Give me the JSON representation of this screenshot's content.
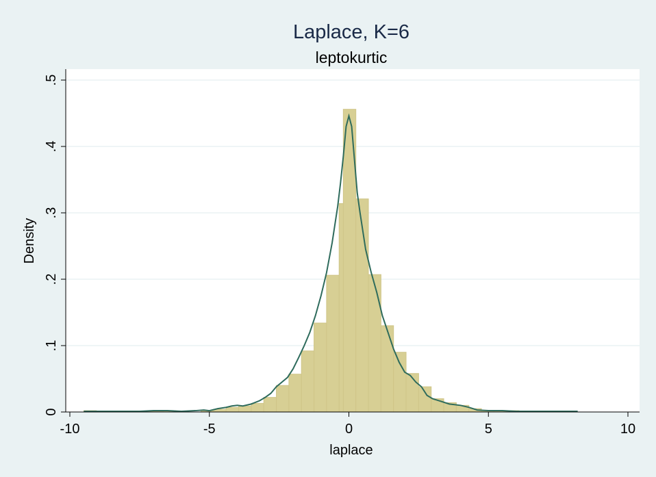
{
  "chart_data": {
    "type": "bar",
    "title": "Laplace, K=6",
    "subtitle": "leptokurtic",
    "xlabel": "laplace",
    "ylabel": "Density",
    "xlim": [
      -10,
      10
    ],
    "ylim": [
      0,
      0.5
    ],
    "x_ticks": [
      -10,
      -5,
      0,
      5,
      10
    ],
    "x_tick_labels": [
      "-10",
      "-5",
      "0",
      "5",
      "10"
    ],
    "y_ticks": [
      0,
      0.1,
      0.2,
      0.3,
      0.4,
      0.5
    ],
    "y_tick_labels": [
      "0",
      ".1",
      ".2",
      ".3",
      ".4",
      ".5"
    ],
    "grid": true,
    "colors": {
      "bars": "#d7cf94",
      "bar_outline": "#cfc588",
      "density_line": "#2e6b5c",
      "background": "#eaf2f3",
      "plot_background": "#ffffff",
      "grid": "#eaf2f3"
    },
    "series": [
      {
        "kind": "histogram",
        "bin_width": 0.45,
        "bins": [
          {
            "x0": -9.5,
            "density": 0.002
          },
          {
            "x0": -8.0,
            "density": 0.001
          },
          {
            "x0": -7.55,
            "density": 0.001
          },
          {
            "x0": -7.1,
            "density": 0.001
          },
          {
            "x0": -6.65,
            "density": 0.002
          },
          {
            "x0": -5.3,
            "density": 0.002
          },
          {
            "x0": -4.85,
            "density": 0.004
          },
          {
            "x0": -4.4,
            "density": 0.007
          },
          {
            "x0": -3.95,
            "density": 0.009
          },
          {
            "x0": -3.5,
            "density": 0.013
          },
          {
            "x0": -3.05,
            "density": 0.022
          },
          {
            "x0": -2.6,
            "density": 0.04
          },
          {
            "x0": -2.15,
            "density": 0.057
          },
          {
            "x0": -1.7,
            "density": 0.092
          },
          {
            "x0": -1.25,
            "density": 0.134
          },
          {
            "x0": -0.8,
            "density": 0.206
          },
          {
            "x0": -0.35,
            "density": 0.314
          },
          {
            "x0": -0.2,
            "density": 0.456
          },
          {
            "x0": 0.25,
            "density": 0.321
          },
          {
            "x0": 0.7,
            "density": 0.207
          },
          {
            "x0": 1.15,
            "density": 0.13
          },
          {
            "x0": 1.6,
            "density": 0.09
          },
          {
            "x0": 2.05,
            "density": 0.058
          },
          {
            "x0": 2.5,
            "density": 0.038
          },
          {
            "x0": 2.95,
            "density": 0.02
          },
          {
            "x0": 3.4,
            "density": 0.014
          },
          {
            "x0": 3.85,
            "density": 0.01
          },
          {
            "x0": 4.3,
            "density": 0.005
          },
          {
            "x0": 4.75,
            "density": 0.002
          },
          {
            "x0": 5.2,
            "density": 0.002
          },
          {
            "x0": 5.65,
            "density": 0.002
          },
          {
            "x0": 6.1,
            "density": 0.001
          },
          {
            "x0": 6.55,
            "density": 0.001
          },
          {
            "x0": 7.0,
            "density": 0.001
          },
          {
            "x0": 7.45,
            "density": 0.001
          }
        ]
      },
      {
        "kind": "kernel-density-line",
        "x": [
          -9.5,
          -8.5,
          -7.5,
          -7.0,
          -6.5,
          -6.0,
          -5.5,
          -5.2,
          -5.0,
          -4.7,
          -4.4,
          -4.2,
          -4.0,
          -3.8,
          -3.5,
          -3.2,
          -3.0,
          -2.8,
          -2.6,
          -2.4,
          -2.2,
          -2.0,
          -1.8,
          -1.6,
          -1.4,
          -1.2,
          -1.0,
          -0.8,
          -0.6,
          -0.4,
          -0.3,
          -0.2,
          -0.1,
          0.0,
          0.1,
          0.2,
          0.3,
          0.4,
          0.6,
          0.8,
          1.0,
          1.2,
          1.4,
          1.6,
          1.8,
          2.0,
          2.2,
          2.4,
          2.6,
          2.8,
          3.0,
          3.3,
          3.6,
          4.0,
          4.3,
          4.6,
          5.0,
          5.5,
          6.0,
          6.5,
          7.0,
          7.5,
          8.2
        ],
        "y": [
          0.001,
          0.001,
          0.001,
          0.002,
          0.002,
          0.001,
          0.002,
          0.003,
          0.002,
          0.005,
          0.007,
          0.009,
          0.01,
          0.009,
          0.012,
          0.017,
          0.022,
          0.028,
          0.038,
          0.045,
          0.052,
          0.065,
          0.082,
          0.1,
          0.12,
          0.145,
          0.175,
          0.21,
          0.255,
          0.31,
          0.345,
          0.385,
          0.43,
          0.446,
          0.43,
          0.38,
          0.33,
          0.3,
          0.245,
          0.21,
          0.18,
          0.145,
          0.12,
          0.095,
          0.075,
          0.06,
          0.055,
          0.045,
          0.038,
          0.025,
          0.02,
          0.016,
          0.012,
          0.01,
          0.007,
          0.003,
          0.002,
          0.002,
          0.001,
          0.001,
          0.001,
          0.001,
          0.001
        ]
      }
    ]
  }
}
